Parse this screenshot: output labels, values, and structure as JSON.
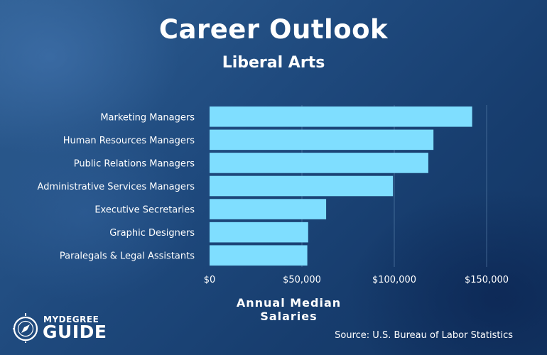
{
  "header": {
    "title": "Career Outlook",
    "subtitle": "Liberal Arts"
  },
  "chart_data": {
    "type": "bar",
    "orientation": "horizontal",
    "categories": [
      "Marketing Managers",
      "Human Resources Managers",
      "Public Relations Managers",
      "Administrative Services Managers",
      "Executive Secretaries",
      "Graphic Designers",
      "Paralegals & Legal Assistants"
    ],
    "values": [
      142170,
      121220,
      118430,
      99290,
      63110,
      53380,
      52920
    ],
    "xlabel": "Annual Median Salaries",
    "ylabel": "",
    "xlim": [
      0,
      150000
    ],
    "xticks": [
      0,
      50000,
      100000,
      150000
    ],
    "xtick_labels": [
      "$0",
      "$50,000",
      "$100,000",
      "$150,000"
    ],
    "grid": true,
    "bar_color": "#7fdeff"
  },
  "footer": {
    "logo_top": "MYDEGREE",
    "logo_bottom": "GUIDE",
    "source": "Source: U.S. Bureau of Labor Statistics"
  },
  "colors": {
    "bar": "#7fdeff",
    "text": "#ffffff",
    "grid": "#5f86b0"
  }
}
